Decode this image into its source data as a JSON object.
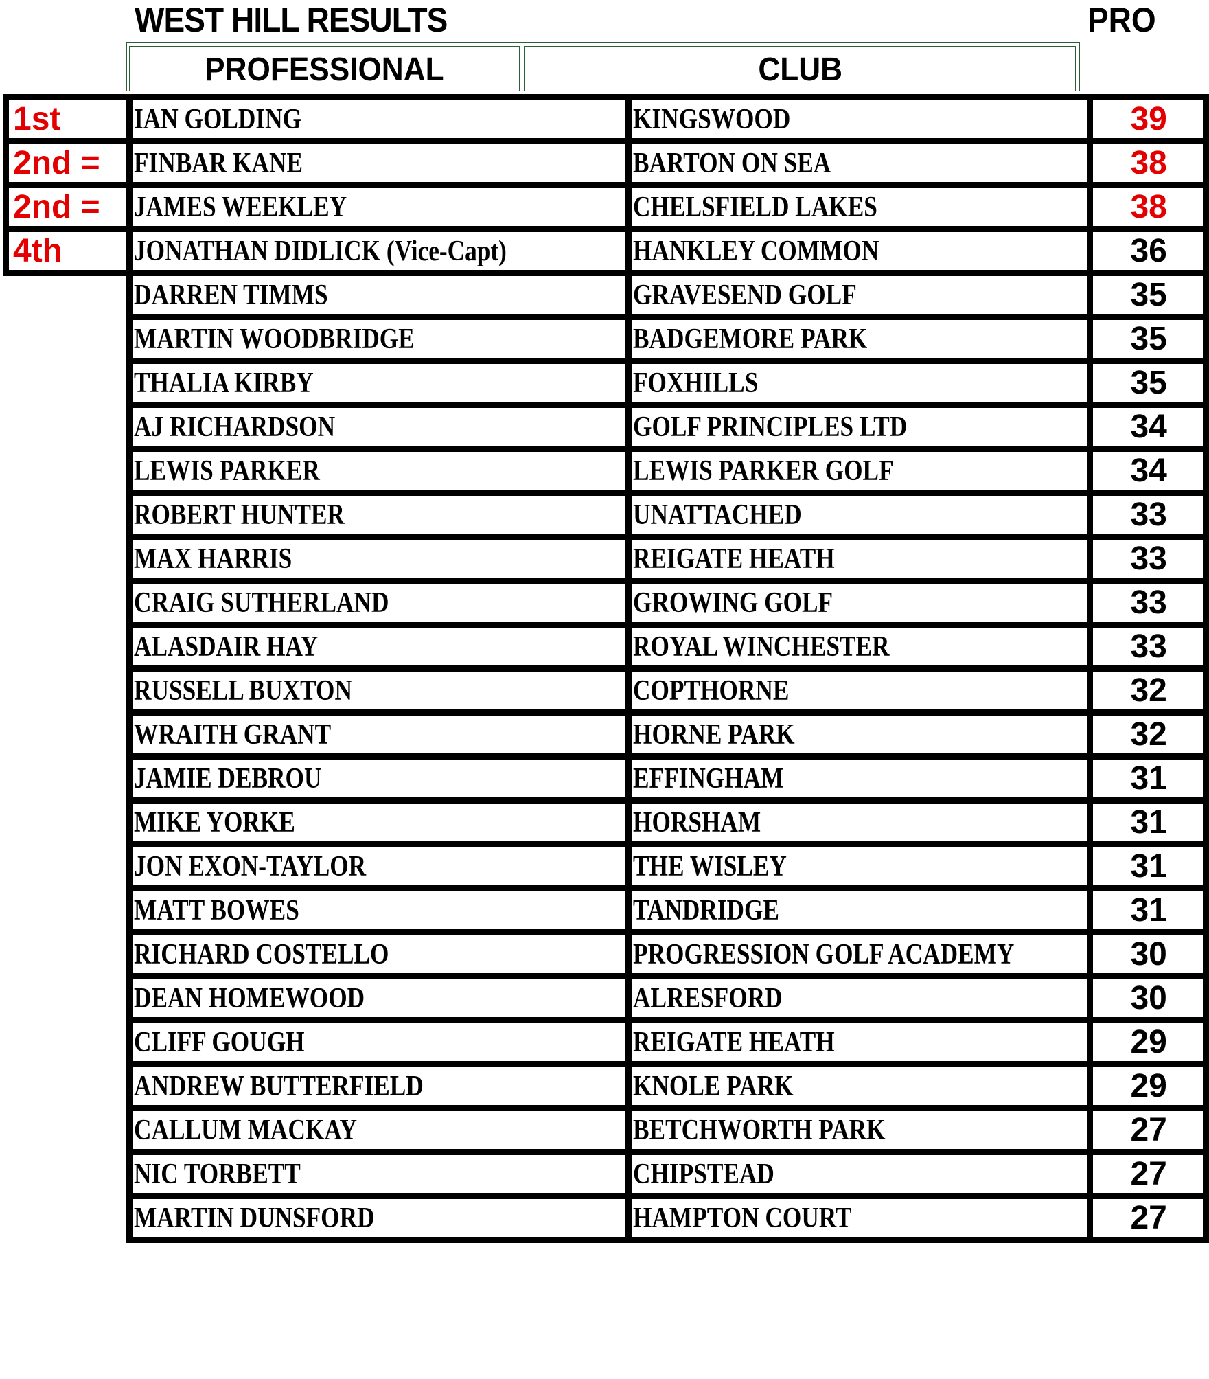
{
  "title": "WEST HILL RESULTS",
  "score_header": "PRO",
  "columns": {
    "professional": "PROFESSIONAL",
    "club": "CLUB"
  },
  "colors": {
    "highlight": "#e30000",
    "header_border": "#2e5e34"
  },
  "rows": [
    {
      "rank": "1st",
      "name": "IAN GOLDING",
      "club": "KINGSWOOD",
      "score": "39",
      "highlight": true
    },
    {
      "rank": "2nd =",
      "name": "FINBAR KANE",
      "club": "BARTON ON SEA",
      "score": "38",
      "highlight": true
    },
    {
      "rank": "2nd =",
      "name": "JAMES WEEKLEY",
      "club": "CHELSFIELD LAKES",
      "score": "38",
      "highlight": true
    },
    {
      "rank": "4th",
      "name": "JONATHAN DIDLICK (Vice-Capt)",
      "club": "HANKLEY COMMON",
      "score": "36",
      "highlight": false
    },
    {
      "name": "DARREN TIMMS",
      "club": "GRAVESEND GOLF",
      "score": "35"
    },
    {
      "name": "MARTIN WOODBRIDGE",
      "club": "BADGEMORE PARK",
      "score": "35"
    },
    {
      "name": "THALIA KIRBY",
      "club": "FOXHILLS",
      "score": "35"
    },
    {
      "name": "AJ RICHARDSON",
      "club": "GOLF PRINCIPLES LTD",
      "score": "34"
    },
    {
      "name": "LEWIS PARKER",
      "club": "LEWIS PARKER GOLF",
      "score": "34"
    },
    {
      "name": "ROBERT HUNTER",
      "club": "UNATTACHED",
      "score": "33"
    },
    {
      "name": "MAX HARRIS",
      "club": "REIGATE HEATH",
      "score": "33"
    },
    {
      "name": "CRAIG SUTHERLAND",
      "club": "GROWING GOLF",
      "score": "33"
    },
    {
      "name": "ALASDAIR HAY",
      "club": "ROYAL WINCHESTER",
      "score": "33"
    },
    {
      "name": "RUSSELL BUXTON",
      "club": "COPTHORNE",
      "score": "32"
    },
    {
      "name": "WRAITH GRANT",
      "club": "HORNE PARK",
      "score": "32"
    },
    {
      "name": "JAMIE DEBROU",
      "club": "EFFINGHAM",
      "score": "31"
    },
    {
      "name": "MIKE YORKE",
      "club": "HORSHAM",
      "score": "31"
    },
    {
      "name": "JON EXON-TAYLOR",
      "club": "THE WISLEY",
      "score": "31"
    },
    {
      "name": "MATT BOWES",
      "club": "TANDRIDGE",
      "score": "31"
    },
    {
      "name": "RICHARD COSTELLO",
      "club": "PROGRESSION GOLF ACADEMY",
      "score": "30"
    },
    {
      "name": "DEAN HOMEWOOD",
      "club": "ALRESFORD",
      "score": "30"
    },
    {
      "name": "CLIFF GOUGH",
      "club": "REIGATE HEATH",
      "score": "29"
    },
    {
      "name": "ANDREW BUTTERFIELD",
      "club": "KNOLE PARK",
      "score": "29"
    },
    {
      "name": "CALLUM MACKAY",
      "club": "BETCHWORTH PARK",
      "score": "27"
    },
    {
      "name": "NIC TORBETT",
      "club": "CHIPSTEAD",
      "score": "27"
    },
    {
      "name": "MARTIN DUNSFORD",
      "club": "HAMPTON COURT",
      "score": "27"
    }
  ]
}
